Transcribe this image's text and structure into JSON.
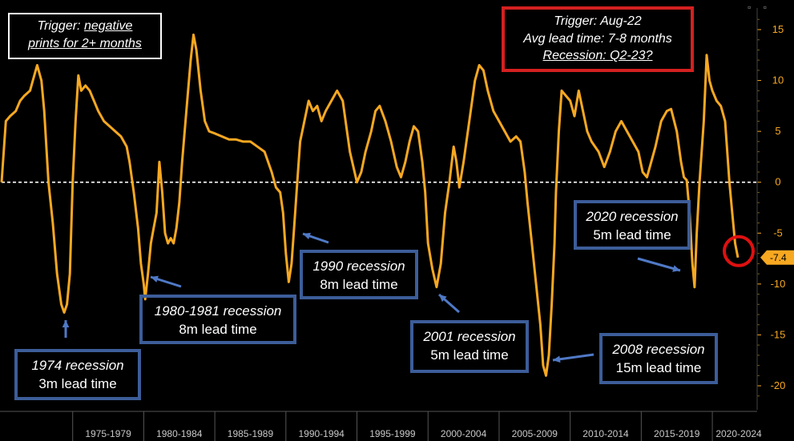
{
  "chart_data": {
    "type": "line",
    "series_color": "#f7a821",
    "ylim": [
      -22,
      16
    ],
    "yticks": [
      15,
      10,
      5,
      0,
      -5,
      -10,
      -15,
      -20
    ],
    "ytick_labels": [
      "15",
      "10",
      "5",
      "0",
      "-5",
      "-10",
      "-15",
      "-20"
    ],
    "xlim": [
      1970.0,
      2023.75
    ],
    "x_category_boundaries": [
      1975,
      1980,
      1985,
      1990,
      1995,
      2000,
      2005,
      2010,
      2015,
      2020,
      2025
    ],
    "x_category_labels": [
      "1975-1979",
      "1980-1984",
      "1985-1989",
      "1990-1994",
      "1995-1999",
      "2000-2004",
      "2005-2009",
      "2010-2014",
      "2015-2019",
      "2020-2024"
    ],
    "zero_line": {
      "value": 0,
      "style": "dashed",
      "color": "#ffffff"
    },
    "last_value_label": "-7.4",
    "last_value": -7.4,
    "last_value_badge_color": "#f7a821",
    "highlight_circle_color": "#e01010",
    "grid": false,
    "points": [
      [
        1970.0,
        0
      ],
      [
        1970.3,
        6
      ],
      [
        1970.6,
        6.5
      ],
      [
        1971.0,
        7
      ],
      [
        1971.3,
        8
      ],
      [
        1971.6,
        8.5
      ],
      [
        1972.0,
        9
      ],
      [
        1972.2,
        10
      ],
      [
        1972.5,
        11.5
      ],
      [
        1972.8,
        10
      ],
      [
        1973.0,
        7
      ],
      [
        1973.3,
        0
      ],
      [
        1973.6,
        -4
      ],
      [
        1973.9,
        -9
      ],
      [
        1974.2,
        -12
      ],
      [
        1974.4,
        -12.8
      ],
      [
        1974.6,
        -12
      ],
      [
        1974.8,
        -9
      ],
      [
        1975.0,
        0
      ],
      [
        1975.2,
        6
      ],
      [
        1975.4,
        10.5
      ],
      [
        1975.6,
        9
      ],
      [
        1975.9,
        9.5
      ],
      [
        1976.2,
        9
      ],
      [
        1976.5,
        8
      ],
      [
        1976.8,
        7
      ],
      [
        1977.2,
        6
      ],
      [
        1977.6,
        5.5
      ],
      [
        1978.0,
        5
      ],
      [
        1978.4,
        4.5
      ],
      [
        1978.8,
        3.5
      ],
      [
        1979.0,
        2
      ],
      [
        1979.3,
        -1
      ],
      [
        1979.6,
        -4.5
      ],
      [
        1979.8,
        -8
      ],
      [
        1980.0,
        -10
      ],
      [
        1980.1,
        -11.5
      ],
      [
        1980.3,
        -9
      ],
      [
        1980.5,
        -6
      ],
      [
        1980.7,
        -4.5
      ],
      [
        1980.9,
        -3
      ],
      [
        1981.1,
        2
      ],
      [
        1981.3,
        -1
      ],
      [
        1981.5,
        -5
      ],
      [
        1981.7,
        -6
      ],
      [
        1981.9,
        -5.5
      ],
      [
        1982.1,
        -6
      ],
      [
        1982.3,
        -4.5
      ],
      [
        1982.5,
        -2
      ],
      [
        1982.7,
        2
      ],
      [
        1983.0,
        7
      ],
      [
        1983.3,
        12
      ],
      [
        1983.5,
        14.5
      ],
      [
        1983.7,
        13
      ],
      [
        1984.0,
        9
      ],
      [
        1984.3,
        6
      ],
      [
        1984.6,
        5
      ],
      [
        1985.0,
        4.8
      ],
      [
        1985.5,
        4.5
      ],
      [
        1986.0,
        4.2
      ],
      [
        1986.5,
        4.2
      ],
      [
        1987.0,
        4
      ],
      [
        1987.5,
        4
      ],
      [
        1988.0,
        3.5
      ],
      [
        1988.5,
        3
      ],
      [
        1989.0,
        1
      ],
      [
        1989.3,
        -0.5
      ],
      [
        1989.6,
        -1
      ],
      [
        1989.8,
        -3
      ],
      [
        1990.0,
        -7
      ],
      [
        1990.2,
        -9.8
      ],
      [
        1990.4,
        -8
      ],
      [
        1990.6,
        -4
      ],
      [
        1990.8,
        0
      ],
      [
        1991.0,
        4
      ],
      [
        1991.3,
        6
      ],
      [
        1991.6,
        8
      ],
      [
        1991.9,
        7
      ],
      [
        1992.2,
        7.5
      ],
      [
        1992.5,
        6
      ],
      [
        1992.8,
        7
      ],
      [
        1993.2,
        8
      ],
      [
        1993.6,
        9
      ],
      [
        1994.0,
        8
      ],
      [
        1994.3,
        5
      ],
      [
        1994.5,
        3
      ],
      [
        1995.0,
        0
      ],
      [
        1995.3,
        1
      ],
      [
        1995.6,
        3
      ],
      [
        1996.0,
        5
      ],
      [
        1996.3,
        7
      ],
      [
        1996.6,
        7.5
      ],
      [
        1997.0,
        6
      ],
      [
        1997.4,
        4
      ],
      [
        1997.8,
        1.5
      ],
      [
        1998.1,
        0.5
      ],
      [
        1998.4,
        2
      ],
      [
        1998.7,
        4
      ],
      [
        1999.0,
        5.5
      ],
      [
        1999.3,
        5
      ],
      [
        1999.6,
        2
      ],
      [
        1999.8,
        -1
      ],
      [
        2000.0,
        -6
      ],
      [
        2000.3,
        -8.5
      ],
      [
        2000.6,
        -10.3
      ],
      [
        2000.9,
        -8
      ],
      [
        2001.2,
        -3
      ],
      [
        2001.5,
        0
      ],
      [
        2001.8,
        3.5
      ],
      [
        2002.0,
        2
      ],
      [
        2002.2,
        -0.5
      ],
      [
        2002.5,
        2
      ],
      [
        2003.0,
        7
      ],
      [
        2003.3,
        10
      ],
      [
        2003.6,
        11.5
      ],
      [
        2003.9,
        11
      ],
      [
        2004.2,
        9
      ],
      [
        2004.6,
        7
      ],
      [
        2005.0,
        6
      ],
      [
        2005.4,
        5
      ],
      [
        2005.8,
        4
      ],
      [
        2006.2,
        4.5
      ],
      [
        2006.5,
        4
      ],
      [
        2006.8,
        1
      ],
      [
        2007.0,
        -2
      ],
      [
        2007.3,
        -6
      ],
      [
        2007.6,
        -10
      ],
      [
        2007.9,
        -14
      ],
      [
        2008.1,
        -18
      ],
      [
        2008.3,
        -19
      ],
      [
        2008.5,
        -17
      ],
      [
        2008.7,
        -12
      ],
      [
        2008.9,
        -6
      ],
      [
        2009.0,
        -1
      ],
      [
        2009.2,
        5
      ],
      [
        2009.4,
        9
      ],
      [
        2009.7,
        8.5
      ],
      [
        2010.0,
        8
      ],
      [
        2010.3,
        6.5
      ],
      [
        2010.6,
        9
      ],
      [
        2010.9,
        7
      ],
      [
        2011.2,
        5
      ],
      [
        2011.5,
        4
      ],
      [
        2012.0,
        3
      ],
      [
        2012.4,
        1.5
      ],
      [
        2012.8,
        3
      ],
      [
        2013.2,
        5
      ],
      [
        2013.6,
        6
      ],
      [
        2014.0,
        5
      ],
      [
        2014.4,
        4
      ],
      [
        2014.8,
        3
      ],
      [
        2015.1,
        1
      ],
      [
        2015.4,
        0.5
      ],
      [
        2015.7,
        2
      ],
      [
        2016.0,
        3.5
      ],
      [
        2016.4,
        6
      ],
      [
        2016.8,
        7
      ],
      [
        2017.1,
        7.2
      ],
      [
        2017.5,
        5
      ],
      [
        2017.8,
        2
      ],
      [
        2018.0,
        0.5
      ],
      [
        2018.2,
        0.2
      ],
      [
        2018.4,
        -3
      ],
      [
        2018.6,
        -8
      ],
      [
        2018.75,
        -10.3
      ],
      [
        2018.9,
        -5
      ],
      [
        2019.1,
        0
      ],
      [
        2019.4,
        6
      ],
      [
        2019.6,
        12.5
      ],
      [
        2019.8,
        10
      ],
      [
        2020.0,
        9
      ],
      [
        2020.3,
        8
      ],
      [
        2020.6,
        7.5
      ],
      [
        2020.9,
        6
      ],
      [
        2021.0,
        4
      ],
      [
        2021.2,
        0
      ],
      [
        2021.4,
        -3
      ],
      [
        2021.6,
        -6
      ],
      [
        2021.8,
        -7.4
      ]
    ]
  },
  "trigger_box": {
    "prefix": "Trigger: ",
    "underlined_1": "negative",
    "underlined_2": "prints for 2+ months"
  },
  "red_box": {
    "line1": "Trigger: Aug-22",
    "line2": "Avg lead time: 7-8 months",
    "line3": "Recession: Q2-23?"
  },
  "annotations": {
    "r1974": {
      "title": "1974 recession",
      "lead": "3m lead time"
    },
    "r1980": {
      "title": "1980-1981 recession",
      "lead": "8m lead time"
    },
    "r1990": {
      "title": "1990 recession",
      "lead": "8m lead time"
    },
    "r2001": {
      "title": "2001 recession",
      "lead": "5m lead time"
    },
    "r2008": {
      "title": "2008 recession",
      "lead": "15m lead time"
    },
    "r2020": {
      "title": "2020 recession",
      "lead": "5m lead time"
    }
  },
  "colors": {
    "background": "#000000",
    "line": "#f7a821",
    "box_blue": "#3c5d99",
    "box_red": "#d42020",
    "arrow": "#4f79c6",
    "axis_text": "#f7a821",
    "x_text": "#c8c8c8"
  }
}
